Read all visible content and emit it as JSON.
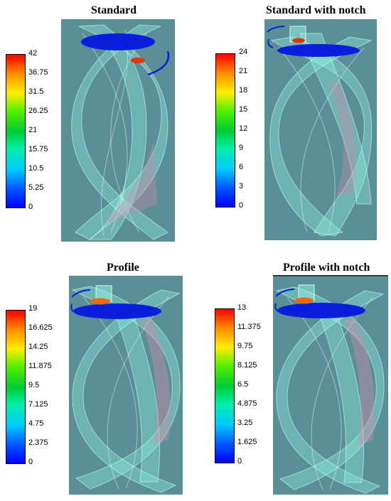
{
  "panels": [
    {
      "title": "Standard",
      "ticks": [
        "42",
        "36.75",
        "31.5",
        "26.25",
        "21",
        "15.75",
        "10.5",
        "5.25",
        "0"
      ]
    },
    {
      "title": "Standard with notch",
      "ticks": [
        "24",
        "21",
        "18",
        "15",
        "12",
        "9",
        "6",
        "3",
        "0"
      ]
    },
    {
      "title": "Profile",
      "ticks": [
        "19",
        "16.625",
        "14.25",
        "11.875",
        "9.5",
        "7.125",
        "4.75",
        "2.375",
        "0"
      ]
    },
    {
      "title": "Profile with notch",
      "ticks": [
        "13",
        "11.375",
        "9.75",
        "8.125",
        "6.5",
        "4.875",
        "3.25",
        "1.625",
        "0"
      ]
    }
  ],
  "colors": {
    "background": "#5a8f98",
    "surface": "#7fe8d6",
    "blade_edge": "#0a1fdc",
    "hotspot": "#e8320a",
    "colormap": [
      "#ff0000",
      "#ff8800",
      "#ffee00",
      "#55ee00",
      "#00cc33",
      "#00eeaa",
      "#00ccff",
      "#0055ff",
      "#0000ff"
    ]
  }
}
